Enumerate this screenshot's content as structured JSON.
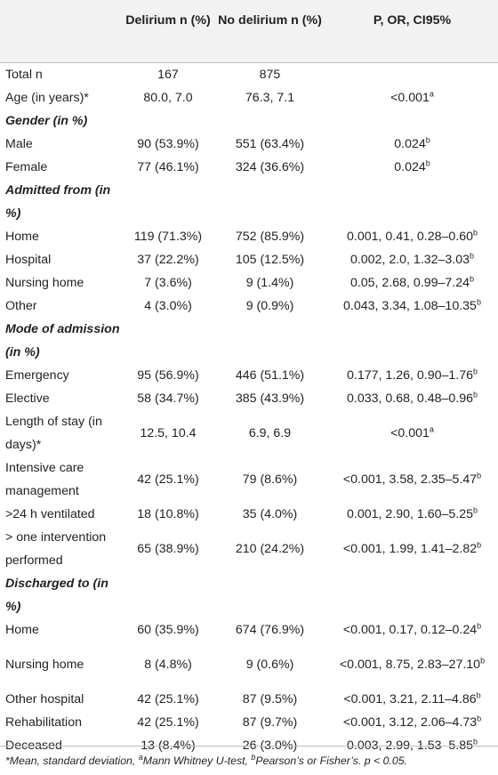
{
  "header": {
    "col2": "Delirium n (%)",
    "col3": "No delirium n (%)",
    "col4": "P, OR, CI95%"
  },
  "rows": [
    {
      "type": "data",
      "label": "Total n",
      "d": "167",
      "nd": "875",
      "p": ""
    },
    {
      "type": "data",
      "label": "Age (in years)*",
      "d": "80.0, 7.0",
      "nd": "76.3, 7.1",
      "p": "<0.001",
      "sup": "a"
    },
    {
      "type": "section",
      "label": "Gender (in %)"
    },
    {
      "type": "data",
      "label": "Male",
      "d": "90 (53.9%)",
      "nd": "551 (63.4%)",
      "p": "0.024",
      "sup": "b"
    },
    {
      "type": "data",
      "label": "Female",
      "d": "77 (46.1%)",
      "nd": "324 (36.6%)",
      "p": "0.024",
      "sup": "b"
    },
    {
      "type": "section",
      "label": "Admitted from (in %)"
    },
    {
      "type": "data",
      "label": "Home",
      "d": "119 (71.3%)",
      "nd": "752 (85.9%)",
      "p": "0.001, 0.41, 0.28–0.60",
      "sup": "b"
    },
    {
      "type": "data",
      "label": "Hospital",
      "d": "37 (22.2%)",
      "nd": "105 (12.5%)",
      "p": "0.002, 2.0, 1.32–3.03",
      "sup": "b"
    },
    {
      "type": "data",
      "label": "Nursing home",
      "d": "7 (3.6%)",
      "nd": "9 (1.4%)",
      "p": "0.05, 2.68, 0.99–7.24",
      "sup": "b"
    },
    {
      "type": "data",
      "label": "Other",
      "d": "4 (3.0%)",
      "nd": "9 (0.9%)",
      "p": "0.043, 3.34, 1.08–10.35",
      "sup": "b"
    },
    {
      "type": "section",
      "label": "Mode of admission (in %)"
    },
    {
      "type": "data",
      "label": "Emergency",
      "d": "95 (56.9%)",
      "nd": "446 (51.1%)",
      "p": "0.177, 1.26, 0.90–1.76",
      "sup": "b"
    },
    {
      "type": "data",
      "label": "Elective",
      "d": "58 (34.7%)",
      "nd": "385 (43.9%)",
      "p": "0.033, 0.68, 0.48–0.96",
      "sup": "b"
    },
    {
      "type": "data",
      "label": "Length of stay (in days)*",
      "d": "12.5, 10.4",
      "nd": "6.9, 6.9",
      "p": "<0.001",
      "sup": "a"
    },
    {
      "type": "data",
      "label": "Intensive care management",
      "d": "42 (25.1%)",
      "nd": "79 (8.6%)",
      "p": "<0.001, 3.58, 2.35–5.47",
      "sup": "b"
    },
    {
      "type": "data",
      "label": ">24 h ventilated",
      "d": "18 (10.8%)",
      "nd": "35 (4.0%)",
      "p": "0.001, 2.90, 1.60–5.25",
      "sup": "b"
    },
    {
      "type": "data",
      "label": "> one intervention performed",
      "d": "65 (38.9%)",
      "nd": "210 (24.2%)",
      "p": "<0.001, 1.99, 1.41–2.82",
      "sup": "b"
    },
    {
      "type": "section",
      "label": "Discharged to (in %)"
    },
    {
      "type": "data",
      "label": "Home",
      "d": "60 (35.9%)",
      "nd": "674 (76.9%)",
      "p": "<0.001, 0.17, 0.12–0.24",
      "sup": "b"
    },
    {
      "type": "data",
      "label": "Nursing home",
      "d": "8 (4.8%)",
      "nd": "9 (0.6%)",
      "p": "<0.001, 8.75, 2.83–27.10",
      "sup": "b"
    },
    {
      "type": "data",
      "label": "Other hospital",
      "d": "42 (25.1%)",
      "nd": "87 (9.5%)",
      "p": "<0.001, 3.21, 2.11–4.86",
      "sup": "b"
    },
    {
      "type": "data",
      "label": "Rehabilitation",
      "d": "42 (25.1%)",
      "nd": "87 (9.7%)",
      "p": "<0.001, 3.12, 2.06–4.73",
      "sup": "b"
    },
    {
      "type": "data",
      "label": "Deceased",
      "d": "13 (8.4%)",
      "nd": "26 (3.0%)",
      "p": "0.003, 2.99, 1.53–5.85",
      "sup": "b"
    }
  ],
  "footnote": {
    "part1": "*Mean, standard deviation, ",
    "sup_a": "a",
    "part2": "Mann Whitney U-test, ",
    "sup_b": "b",
    "part3": "Pearson’s or Fisher’s. p < 0.05."
  }
}
